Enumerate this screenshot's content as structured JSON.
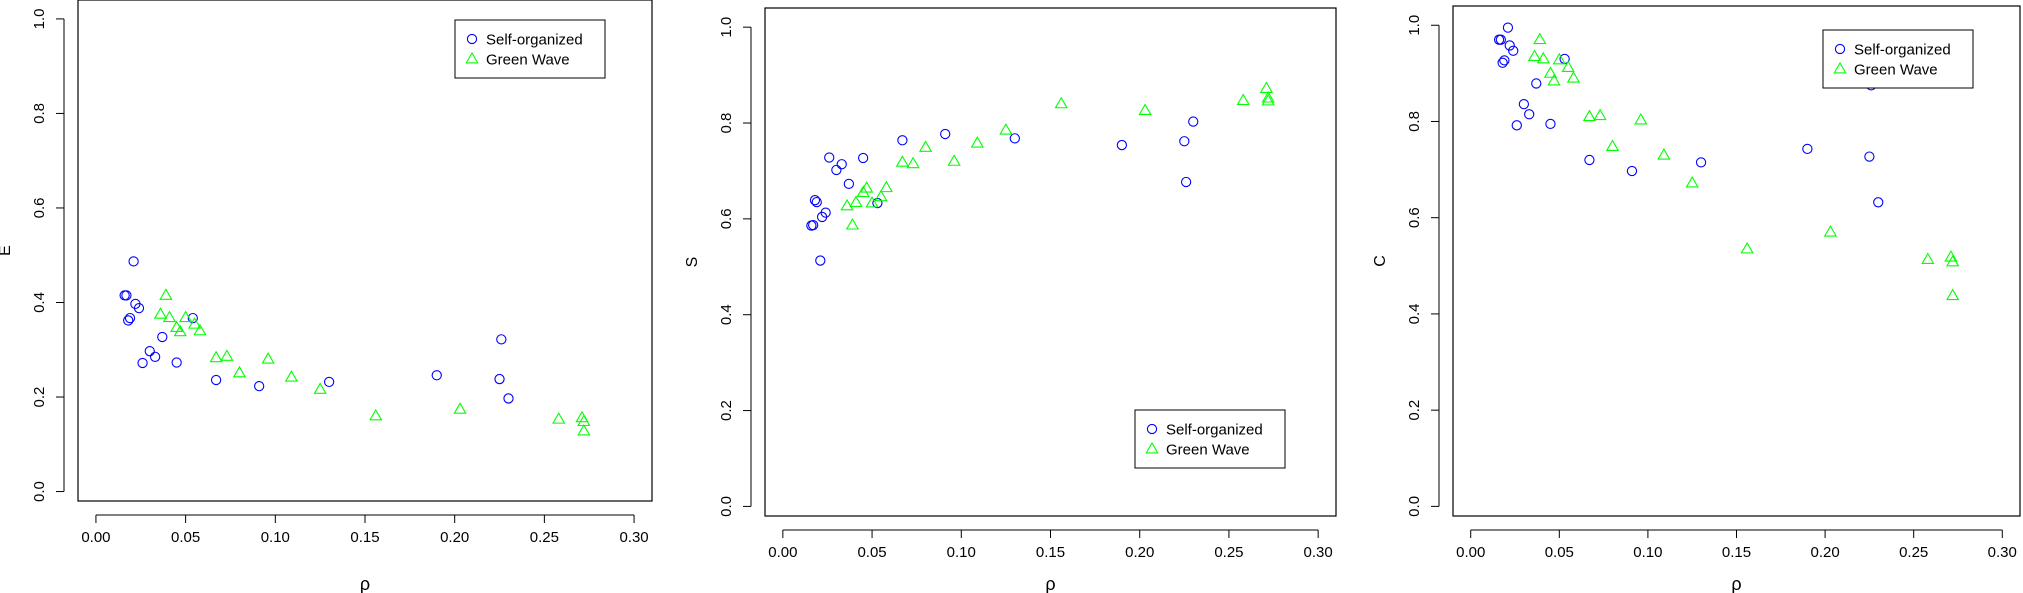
{
  "chart_data": [
    {
      "type": "scatter",
      "ylabel": "E",
      "xlabel": "ρ",
      "xlim": [
        -0.01,
        0.31
      ],
      "ylim": [
        -0.02,
        1.04
      ],
      "xticks": [
        "0.00",
        "0.05",
        "0.10",
        "0.15",
        "0.20",
        "0.25",
        "0.30"
      ],
      "yticks": [
        "0.0",
        "0.2",
        "0.4",
        "0.6",
        "0.8",
        "1.0"
      ],
      "legend_position": "top-right",
      "series": [
        {
          "name": "Self-organized",
          "marker": "circle",
          "color": "#0000ff",
          "points": [
            [
              0.016,
              0.415
            ],
            [
              0.017,
              0.415
            ],
            [
              0.018,
              0.362
            ],
            [
              0.019,
              0.367
            ],
            [
              0.021,
              0.487
            ],
            [
              0.022,
              0.397
            ],
            [
              0.024,
              0.388
            ],
            [
              0.026,
              0.272
            ],
            [
              0.03,
              0.297
            ],
            [
              0.033,
              0.285
            ],
            [
              0.037,
              0.327
            ],
            [
              0.045,
              0.273
            ],
            [
              0.054,
              0.367
            ],
            [
              0.067,
              0.236
            ],
            [
              0.091,
              0.223
            ],
            [
              0.13,
              0.232
            ],
            [
              0.19,
              0.246
            ],
            [
              0.225,
              0.238
            ],
            [
              0.226,
              0.322
            ],
            [
              0.23,
              0.197
            ]
          ]
        },
        {
          "name": "Green Wave",
          "marker": "triangle",
          "color": "#00ff00",
          "points": [
            [
              0.036,
              0.375
            ],
            [
              0.039,
              0.415
            ],
            [
              0.041,
              0.368
            ],
            [
              0.045,
              0.347
            ],
            [
              0.047,
              0.338
            ],
            [
              0.05,
              0.368
            ],
            [
              0.055,
              0.354
            ],
            [
              0.058,
              0.34
            ],
            [
              0.067,
              0.283
            ],
            [
              0.073,
              0.286
            ],
            [
              0.08,
              0.251
            ],
            [
              0.096,
              0.28
            ],
            [
              0.109,
              0.242
            ],
            [
              0.125,
              0.216
            ],
            [
              0.156,
              0.16
            ],
            [
              0.203,
              0.174
            ],
            [
              0.258,
              0.153
            ],
            [
              0.271,
              0.156
            ],
            [
              0.272,
              0.148
            ],
            [
              0.272,
              0.128
            ]
          ]
        }
      ]
    },
    {
      "type": "scatter",
      "ylabel": "S",
      "xlabel": "ρ",
      "xlim": [
        -0.01,
        0.31
      ],
      "ylim": [
        -0.02,
        1.04
      ],
      "xticks": [
        "0.00",
        "0.05",
        "0.10",
        "0.15",
        "0.20",
        "0.25",
        "0.30"
      ],
      "yticks": [
        "0.0",
        "0.2",
        "0.4",
        "0.6",
        "0.8",
        "1.0"
      ],
      "legend_position": "bottom-right",
      "series": [
        {
          "name": "Self-organized",
          "marker": "circle",
          "color": "#0000ff",
          "points": [
            [
              0.016,
              0.586
            ],
            [
              0.017,
              0.587
            ],
            [
              0.018,
              0.639
            ],
            [
              0.019,
              0.635
            ],
            [
              0.021,
              0.513
            ],
            [
              0.022,
              0.604
            ],
            [
              0.024,
              0.613
            ],
            [
              0.026,
              0.728
            ],
            [
              0.03,
              0.702
            ],
            [
              0.033,
              0.714
            ],
            [
              0.037,
              0.673
            ],
            [
              0.045,
              0.727
            ],
            [
              0.053,
              0.633
            ],
            [
              0.067,
              0.764
            ],
            [
              0.091,
              0.777
            ],
            [
              0.13,
              0.768
            ],
            [
              0.19,
              0.754
            ],
            [
              0.225,
              0.762
            ],
            [
              0.226,
              0.677
            ],
            [
              0.23,
              0.803
            ]
          ]
        },
        {
          "name": "Green Wave",
          "marker": "triangle",
          "color": "#00ff00",
          "points": [
            [
              0.036,
              0.627
            ],
            [
              0.039,
              0.587
            ],
            [
              0.041,
              0.634
            ],
            [
              0.045,
              0.655
            ],
            [
              0.047,
              0.664
            ],
            [
              0.05,
              0.633
            ],
            [
              0.055,
              0.646
            ],
            [
              0.058,
              0.665
            ],
            [
              0.067,
              0.718
            ],
            [
              0.073,
              0.715
            ],
            [
              0.08,
              0.749
            ],
            [
              0.096,
              0.72
            ],
            [
              0.109,
              0.758
            ],
            [
              0.125,
              0.785
            ],
            [
              0.156,
              0.84
            ],
            [
              0.203,
              0.826
            ],
            [
              0.258,
              0.847
            ],
            [
              0.271,
              0.872
            ],
            [
              0.272,
              0.852
            ],
            [
              0.272,
              0.846
            ]
          ]
        }
      ]
    },
    {
      "type": "scatter",
      "ylabel": "C",
      "xlabel": "ρ",
      "xlim": [
        -0.01,
        0.31
      ],
      "ylim": [
        -0.02,
        1.04
      ],
      "xticks": [
        "0.00",
        "0.05",
        "0.10",
        "0.15",
        "0.20",
        "0.25",
        "0.30"
      ],
      "yticks": [
        "0.0",
        "0.2",
        "0.4",
        "0.6",
        "0.8",
        "1.0"
      ],
      "legend_position": "top-right",
      "series": [
        {
          "name": "Self-organized",
          "marker": "circle",
          "color": "#0000ff",
          "points": [
            [
              0.016,
              0.97
            ],
            [
              0.017,
              0.97
            ],
            [
              0.018,
              0.922
            ],
            [
              0.019,
              0.927
            ],
            [
              0.021,
              0.995
            ],
            [
              0.022,
              0.958
            ],
            [
              0.024,
              0.947
            ],
            [
              0.026,
              0.792
            ],
            [
              0.03,
              0.836
            ],
            [
              0.033,
              0.815
            ],
            [
              0.037,
              0.879
            ],
            [
              0.045,
              0.795
            ],
            [
              0.053,
              0.93
            ],
            [
              0.067,
              0.72
            ],
            [
              0.091,
              0.697
            ],
            [
              0.13,
              0.715
            ],
            [
              0.19,
              0.743
            ],
            [
              0.225,
              0.727
            ],
            [
              0.226,
              0.875
            ],
            [
              0.23,
              0.632
            ]
          ]
        },
        {
          "name": "Green Wave",
          "marker": "triangle",
          "color": "#00ff00",
          "points": [
            [
              0.036,
              0.935
            ],
            [
              0.039,
              0.97
            ],
            [
              0.041,
              0.93
            ],
            [
              0.045,
              0.9
            ],
            [
              0.047,
              0.884
            ],
            [
              0.05,
              0.928
            ],
            [
              0.055,
              0.912
            ],
            [
              0.058,
              0.89
            ],
            [
              0.067,
              0.81
            ],
            [
              0.073,
              0.812
            ],
            [
              0.08,
              0.748
            ],
            [
              0.096,
              0.803
            ],
            [
              0.109,
              0.73
            ],
            [
              0.125,
              0.672
            ],
            [
              0.156,
              0.535
            ],
            [
              0.203,
              0.57
            ],
            [
              0.258,
              0.513
            ],
            [
              0.271,
              0.518
            ],
            [
              0.272,
              0.508
            ],
            [
              0.272,
              0.438
            ]
          ]
        }
      ]
    }
  ]
}
